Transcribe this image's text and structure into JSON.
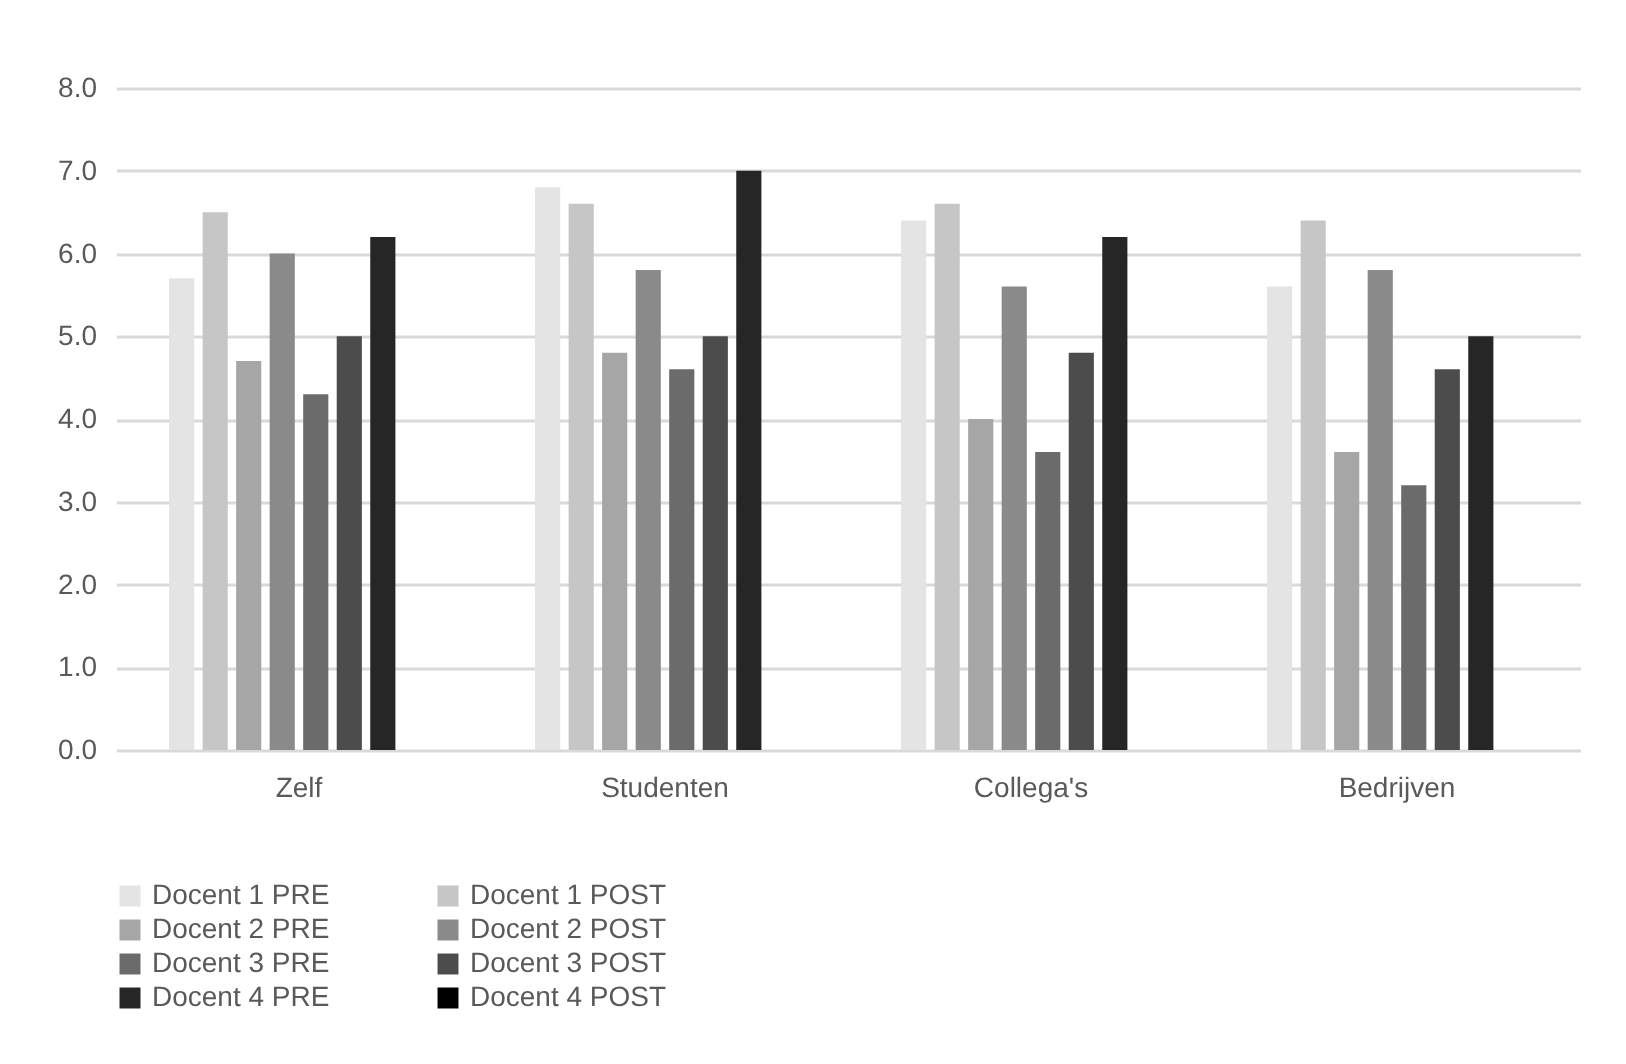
{
  "chart_data": {
    "type": "bar",
    "categories": [
      "Zelf",
      "Studenten",
      "Collega's",
      "Bedrijven"
    ],
    "series": [
      {
        "name": "Docent 1 PRE",
        "color": "#e4e4e4",
        "values": [
          5.7,
          6.8,
          6.4,
          5.6
        ]
      },
      {
        "name": "Docent 1 POST",
        "color": "#c6c6c6",
        "values": [
          6.5,
          6.6,
          6.6,
          6.4
        ]
      },
      {
        "name": "Docent 2 PRE",
        "color": "#a6a6a6",
        "values": [
          4.7,
          4.8,
          4.0,
          3.6
        ]
      },
      {
        "name": "Docent 2 POST",
        "color": "#8a8a8a",
        "values": [
          6.0,
          5.8,
          5.6,
          5.8
        ]
      },
      {
        "name": "Docent 3 PRE",
        "color": "#6b6b6b",
        "values": [
          4.3,
          4.6,
          3.6,
          3.2
        ]
      },
      {
        "name": "Docent 3 POST",
        "color": "#4c4c4c",
        "values": [
          5.0,
          5.0,
          4.8,
          4.6
        ]
      },
      {
        "name": "Docent 4 PRE",
        "color": "#262626",
        "values": [
          6.2,
          7.0,
          6.2,
          5.0
        ]
      },
      {
        "name": "Docent 4 POST",
        "color": "#000000",
        "values": [
          null,
          null,
          null,
          null
        ]
      }
    ],
    "ylim": [
      0,
      8
    ],
    "yticks": [
      {
        "value": 0,
        "label": "0.0"
      },
      {
        "value": 1,
        "label": "1.0"
      },
      {
        "value": 2,
        "label": "2.0"
      },
      {
        "value": 3,
        "label": "3.0"
      },
      {
        "value": 4,
        "label": "4.0"
      },
      {
        "value": 5,
        "label": "5.0"
      },
      {
        "value": 6,
        "label": "6.0"
      },
      {
        "value": 7,
        "label": "7.0"
      },
      {
        "value": 8,
        "label": "8.0"
      }
    ],
    "grid": "y",
    "legend": "bottom"
  }
}
